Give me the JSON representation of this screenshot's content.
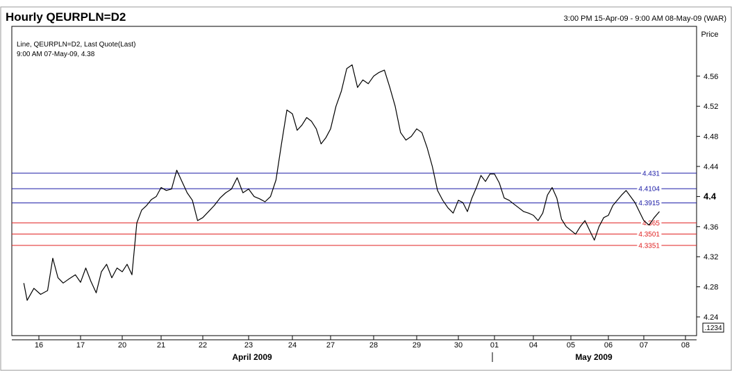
{
  "header": {
    "title": "Hourly QEURPLN=D2",
    "range": "3:00 PM 15-Apr-09 - 9:00 AM 08-May-09 (WAR)"
  },
  "axis": {
    "price_label": "Price",
    "corner_label": ".1234",
    "month_left": "April 2009",
    "month_right": "May 2009"
  },
  "legend": {
    "line1": "Line, QEURPLN=D2, Last Quote(Last)",
    "line2": "9:00 AM 07-May-09, 4.38"
  },
  "chart_data": {
    "type": "line",
    "title": "Hourly QEURPLN=D2",
    "ylabel": "Price",
    "ylim": [
      4.22,
      4.6
    ],
    "yticks": [
      4.24,
      4.28,
      4.32,
      4.36,
      4.4,
      4.44,
      4.48,
      4.52,
      4.56
    ],
    "ytick_labels": [
      "4.24",
      "4.28",
      "4.32",
      "4.36",
      "4.4",
      "4.44",
      "4.48",
      "4.52",
      "4.56"
    ],
    "xticks": [
      "16",
      "17",
      "20",
      "21",
      "22",
      "23",
      "24",
      "27",
      "28",
      "29",
      "30",
      "01",
      "04",
      "05",
      "06",
      "07",
      "08"
    ],
    "x": [
      "15 15:00",
      "15 17:00",
      "15 21:00",
      "16 01:00",
      "16 05:00",
      "16 08:00",
      "16 11:00",
      "16 14:00",
      "16 17:00",
      "16 21:00",
      "17 00:00",
      "17 03:00",
      "17 06:00",
      "17 09:00",
      "17 12:00",
      "17 15:00",
      "17 18:00",
      "17 21:00",
      "20 00:00",
      "20 03:00",
      "20 06:00",
      "20 09:00",
      "20 12:00",
      "20 15:00",
      "20 18:00",
      "20 21:00",
      "21 00:00",
      "21 03:00",
      "21 06:00",
      "21 09:00",
      "21 12:00",
      "21 15:00",
      "21 18:00",
      "21 21:00",
      "22 00:00",
      "22 03:00",
      "22 06:00",
      "22 09:00",
      "22 12:00",
      "22 15:00",
      "22 18:00",
      "22 21:00",
      "23 00:00",
      "23 03:00",
      "23 06:00",
      "23 09:00",
      "23 12:00",
      "23 15:00",
      "23 18:00",
      "23 21:00",
      "24 00:00",
      "24 03:00",
      "24 06:00",
      "24 09:00",
      "24 12:00",
      "24 15:00",
      "24 18:00",
      "24 21:00",
      "27 00:00",
      "27 03:00",
      "27 06:00",
      "27 09:00",
      "27 12:00",
      "27 15:00",
      "27 18:00",
      "27 21:00",
      "28 00:00",
      "28 03:00",
      "28 06:00",
      "28 09:00",
      "28 12:00",
      "28 15:00",
      "28 18:00",
      "28 21:00",
      "29 00:00",
      "29 03:00",
      "29 06:00",
      "29 09:00",
      "29 12:00",
      "29 15:00",
      "29 18:00",
      "29 21:00",
      "30 00:00",
      "30 03:00",
      "30 06:00",
      "30 09:00",
      "30 12:00",
      "30 15:00",
      "30 18:00",
      "30 21:00",
      "01 00:00",
      "01 03:00",
      "01 06:00",
      "01 09:00",
      "01 12:00",
      "01 15:00",
      "01 18:00",
      "01 21:00",
      "04 00:00",
      "04 03:00",
      "04 06:00",
      "04 09:00",
      "04 12:00",
      "04 15:00",
      "04 18:00",
      "04 21:00",
      "05 00:00",
      "05 03:00",
      "05 06:00",
      "05 09:00",
      "05 12:00",
      "05 15:00",
      "05 18:00",
      "05 21:00",
      "06 00:00",
      "06 03:00",
      "06 06:00",
      "06 09:00",
      "06 12:00",
      "06 15:00",
      "06 18:00",
      "06 21:00",
      "07 00:00",
      "07 03:00",
      "07 06:00",
      "07 09:00"
    ],
    "series": [
      {
        "color": "#000000",
        "values": [
          4.285,
          4.262,
          4.278,
          4.27,
          4.275,
          4.318,
          4.292,
          4.285,
          4.29,
          4.296,
          4.286,
          4.305,
          4.287,
          4.272,
          4.3,
          4.31,
          4.292,
          4.305,
          4.3,
          4.31,
          4.296,
          4.365,
          4.382,
          4.388,
          4.396,
          4.4,
          4.412,
          4.408,
          4.41,
          4.435,
          4.42,
          4.405,
          4.395,
          4.368,
          4.372,
          4.38,
          4.388,
          4.398,
          4.405,
          4.41,
          4.425,
          4.405,
          4.41,
          4.4,
          4.397,
          4.393,
          4.4,
          4.422,
          4.47,
          4.515,
          4.51,
          4.488,
          4.495,
          4.505,
          4.5,
          4.49,
          4.47,
          4.478,
          4.49,
          4.52,
          4.54,
          4.57,
          4.575,
          4.545,
          4.555,
          4.55,
          4.56,
          4.565,
          4.568,
          4.545,
          4.52,
          4.485,
          4.475,
          4.48,
          4.49,
          4.485,
          4.465,
          4.44,
          4.408,
          4.395,
          4.385,
          4.378,
          4.395,
          4.392,
          4.38,
          4.398,
          4.412,
          4.428,
          4.42,
          4.43,
          4.43,
          4.418,
          4.398,
          4.395,
          4.39,
          4.385,
          4.38,
          4.378,
          4.375,
          4.368,
          4.378,
          4.402,
          4.412,
          4.398,
          4.37,
          4.36,
          4.355,
          4.35,
          4.36,
          4.368,
          4.355,
          4.342,
          4.36,
          4.372,
          4.375,
          4.388,
          4.395,
          4.402,
          4.408,
          4.4,
          4.392,
          4.38,
          4.368,
          4.362,
          4.372,
          4.38
        ]
      }
    ],
    "hlines": [
      {
        "value": 4.431,
        "label": "4.431",
        "color": "#1a1aa6"
      },
      {
        "value": 4.4104,
        "label": "4.4104",
        "color": "#1a1aa6"
      },
      {
        "value": 4.3915,
        "label": "4.3915",
        "color": "#1a1aa6"
      },
      {
        "value": 4.365,
        "label": "4.365",
        "color": "#e02020"
      },
      {
        "value": 4.3501,
        "label": "4.3501",
        "color": "#e02020"
      },
      {
        "value": 4.3351,
        "label": "4.3351",
        "color": "#e02020"
      }
    ],
    "last_value_label": "4.4"
  }
}
